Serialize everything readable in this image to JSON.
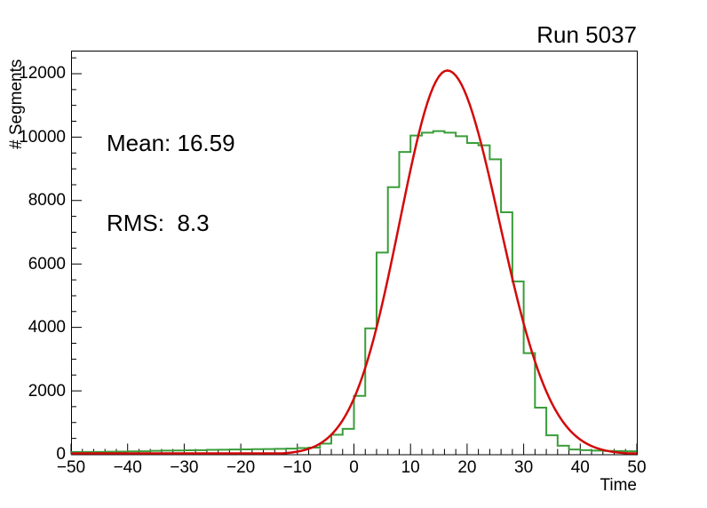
{
  "title": "Run 5037",
  "stats": {
    "mean": "Mean: 16.59",
    "rms": "RMS:  8.3"
  },
  "chart_data": {
    "type": "bar",
    "subtype": "step-histogram-with-fit",
    "title": "Run 5037",
    "xlabel": "Time",
    "ylabel": "# Segments",
    "xlim": [
      -50,
      50
    ],
    "ylim": [
      0,
      12727
    ],
    "grid": false,
    "legend": "none",
    "x_major_ticks": [
      -50,
      -40,
      -30,
      -20,
      -10,
      0,
      10,
      20,
      30,
      40,
      50
    ],
    "x_tick_labels": [
      "−50",
      "−40",
      "−30",
      "−20",
      "−10",
      "0",
      "10",
      "20",
      "30",
      "40",
      "50"
    ],
    "x_minor_step": 2,
    "y_major_ticks": [
      0,
      2000,
      4000,
      6000,
      8000,
      10000,
      12000
    ],
    "y_tick_labels": [
      "0",
      "2000",
      "4000",
      "6000",
      "8000",
      "10000",
      "12000"
    ],
    "y_minor_step": 500,
    "series": [
      {
        "name": "time-histogram",
        "type": "step-histogram",
        "color": "#3a9d3a",
        "line_width": 2,
        "bin_start": -50,
        "bin_width": 2,
        "counts": [
          70,
          75,
          75,
          80,
          85,
          90,
          95,
          110,
          115,
          120,
          125,
          130,
          140,
          145,
          150,
          155,
          160,
          165,
          170,
          180,
          195,
          210,
          335,
          615,
          800,
          1840,
          3970,
          6360,
          8420,
          9530,
          10050,
          10140,
          10190,
          10140,
          10030,
          9815,
          9740,
          9300,
          7630,
          5450,
          3190,
          1470,
          600,
          270,
          150,
          130,
          115,
          105,
          100,
          95
        ]
      },
      {
        "name": "gaussian-fit",
        "type": "gaussian-curve",
        "color": "#d20a0a",
        "line_width": 2.5,
        "amplitude": 12100,
        "mean": 16.5,
        "sigma_left": 8.4,
        "sigma_right": 9.2,
        "sample_step": 0.5
      }
    ],
    "annotations": [
      {
        "name": "mean",
        "text": "Mean: 16.59"
      },
      {
        "name": "rms",
        "text": "RMS:  8.3"
      }
    ],
    "frame": {
      "stroke": "#000000"
    }
  }
}
